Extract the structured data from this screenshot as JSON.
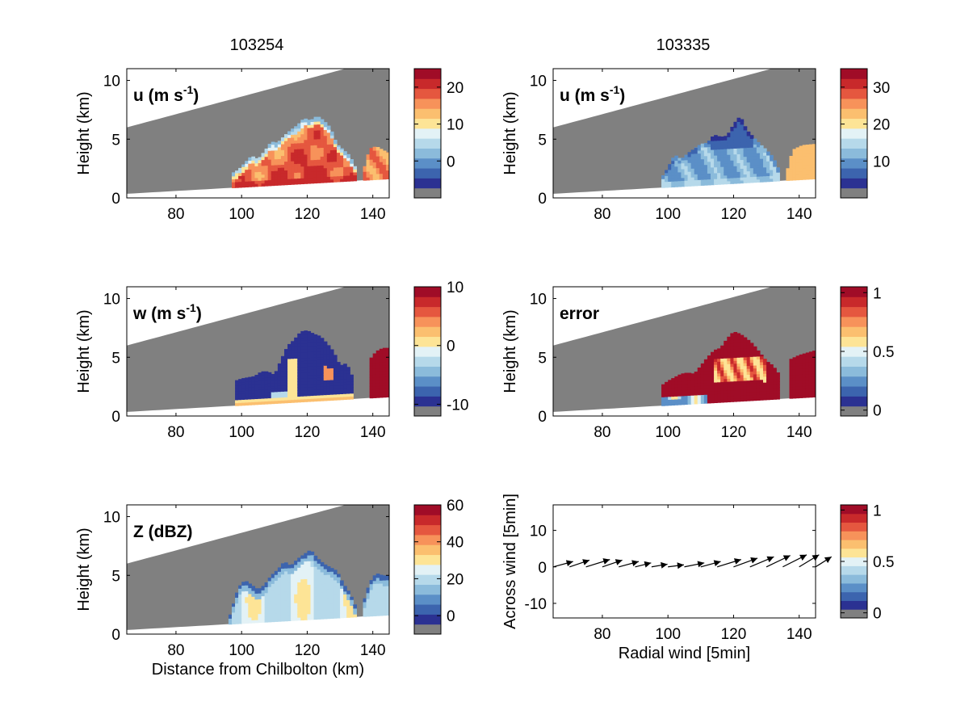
{
  "figure": {
    "column_titles": [
      "103254",
      "103335"
    ],
    "palette": [
      "#2b3192",
      "#3c64ae",
      "#5b8fc7",
      "#8bbbdb",
      "#b6d9ea",
      "#e3f2f6",
      "#fde496",
      "#fbbf6f",
      "#f7925a",
      "#e5573f",
      "#c8292b",
      "#a00c27"
    ],
    "colors": {
      "gray": "#808080",
      "axis": "#000000",
      "background": "#ffffff"
    }
  },
  "chart_data": [
    {
      "type": "heatmap",
      "panel": "u-left",
      "column_title": "103254",
      "label_main": "u (m s",
      "label_sup": "-1",
      "label_end": ")",
      "ylabel": "Height (km)",
      "xlabel": "",
      "xlim": [
        65,
        145
      ],
      "ylim": [
        0,
        11
      ],
      "xticks": [
        "80",
        "100",
        "120",
        "140"
      ],
      "yticks": [
        "0",
        "5",
        "10"
      ],
      "colorbar": {
        "ticks": [
          "0",
          "10",
          "20"
        ],
        "range": [
          -10,
          25
        ]
      },
      "cloud_top_km": [
        [
          97,
          2.1
        ],
        [
          99,
          2.4
        ],
        [
          101,
          3.0
        ],
        [
          103,
          3.6
        ],
        [
          105,
          3.3
        ],
        [
          107,
          4.0
        ],
        [
          109,
          4.8
        ],
        [
          111,
          4.7
        ],
        [
          113,
          5.3
        ],
        [
          115,
          5.8
        ],
        [
          117,
          6.2
        ],
        [
          119,
          6.8
        ],
        [
          121,
          6.6
        ],
        [
          123,
          7.0
        ],
        [
          125,
          6.6
        ],
        [
          127,
          6.0
        ],
        [
          129,
          4.6
        ],
        [
          131,
          4.1
        ],
        [
          133,
          3.6
        ],
        [
          135,
          2.4
        ]
      ],
      "second_cell_top_km": [
        [
          137,
          2.2
        ],
        [
          139,
          4.2
        ],
        [
          141,
          4.4
        ],
        [
          143,
          4.1
        ],
        [
          145,
          3.8
        ]
      ],
      "dominant_values": "mostly 10 to 20 m/s with weaker values near the cloud top"
    },
    {
      "type": "heatmap",
      "panel": "u-right",
      "column_title": "103335",
      "label_main": "u (m s",
      "label_sup": "-1",
      "label_end": ")",
      "ylabel": "Height (km)",
      "xlabel": "",
      "xlim": [
        65,
        145
      ],
      "ylim": [
        0,
        11
      ],
      "xticks": [
        "80",
        "100",
        "120",
        "140"
      ],
      "yticks": [
        "0",
        "5",
        "10"
      ],
      "colorbar": {
        "ticks": [
          "10",
          "20",
          "30"
        ],
        "range": [
          0,
          35
        ]
      },
      "cloud_top_km": [
        [
          98,
          1.7
        ],
        [
          100,
          2.6
        ],
        [
          102,
          3.7
        ],
        [
          104,
          3.3
        ],
        [
          106,
          3.8
        ],
        [
          108,
          4.2
        ],
        [
          110,
          4.6
        ],
        [
          112,
          4.7
        ],
        [
          114,
          5.4
        ],
        [
          116,
          5.2
        ],
        [
          118,
          5.3
        ],
        [
          120,
          6.3
        ],
        [
          122,
          7.0
        ],
        [
          124,
          5.8
        ],
        [
          126,
          5.2
        ],
        [
          128,
          4.6
        ],
        [
          130,
          4.1
        ],
        [
          132,
          3.5
        ],
        [
          134,
          2.3
        ]
      ],
      "second_cell_top_km": [
        [
          136,
          2.0
        ],
        [
          138,
          4.1
        ],
        [
          141,
          4.5
        ],
        [
          145,
          4.6
        ]
      ],
      "dominant_values": "mostly 5 to 12 m/s with a uniform ~22 m/s cell at 140 km"
    },
    {
      "type": "heatmap",
      "panel": "w-left",
      "label_main": "w (m s",
      "label_sup": "-1",
      "label_end": ")",
      "ylabel": "Height (km)",
      "xlabel": "",
      "xlim": [
        65,
        145
      ],
      "ylim": [
        0,
        11
      ],
      "xticks": [
        "80",
        "100",
        "120",
        "140"
      ],
      "yticks": [
        "0",
        "5",
        "10"
      ],
      "colorbar": {
        "ticks": [
          "-10",
          "0",
          "10"
        ],
        "range": [
          -12,
          10
        ]
      },
      "cloud_top_km": [
        [
          98,
          3.0
        ],
        [
          100,
          3.2
        ],
        [
          102,
          3.3
        ],
        [
          104,
          3.4
        ],
        [
          106,
          3.8
        ],
        [
          108,
          3.8
        ],
        [
          110,
          3.5
        ],
        [
          112,
          4.8
        ],
        [
          114,
          6.0
        ],
        [
          116,
          6.5
        ],
        [
          118,
          7.2
        ],
        [
          120,
          7.3
        ],
        [
          122,
          7.0
        ],
        [
          124,
          6.8
        ],
        [
          126,
          6.2
        ],
        [
          128,
          5.5
        ],
        [
          130,
          4.3
        ],
        [
          132,
          4.5
        ],
        [
          134,
          3.2
        ]
      ],
      "second_cell_top_km": [
        [
          139,
          4.8
        ],
        [
          141,
          5.5
        ],
        [
          143,
          5.8
        ],
        [
          145,
          5.8
        ]
      ],
      "dominant_values": "mostly about -10 m/s with a positive layer near the base and a strong positive cell at 140 km"
    },
    {
      "type": "heatmap",
      "panel": "error-right",
      "label_main": "error",
      "label_sup": "",
      "label_end": "",
      "ylabel": "Height (km)",
      "xlabel": "",
      "xlim": [
        65,
        145
      ],
      "ylim": [
        0,
        11
      ],
      "xticks": [
        "80",
        "100",
        "120",
        "140"
      ],
      "yticks": [
        "0",
        "5",
        "10"
      ],
      "colorbar": {
        "ticks": [
          "0",
          "0.5",
          "1"
        ],
        "range": [
          -0.05,
          1.05
        ]
      },
      "cloud_top_km": [
        [
          98,
          2.6
        ],
        [
          100,
          3.0
        ],
        [
          102,
          3.3
        ],
        [
          104,
          3.6
        ],
        [
          106,
          3.7
        ],
        [
          108,
          3.6
        ],
        [
          110,
          4.3
        ],
        [
          112,
          5.0
        ],
        [
          114,
          5.6
        ],
        [
          116,
          5.8
        ],
        [
          118,
          6.6
        ],
        [
          120,
          7.2
        ],
        [
          122,
          7.0
        ],
        [
          124,
          6.6
        ],
        [
          126,
          6.1
        ],
        [
          128,
          5.4
        ],
        [
          130,
          4.7
        ],
        [
          132,
          4.3
        ],
        [
          134,
          3.5
        ]
      ],
      "second_cell_top_km": [
        [
          137,
          4.8
        ],
        [
          140,
          5.2
        ],
        [
          145,
          5.6
        ]
      ],
      "dominant_values": "mostly ~1 with lower values near the cloud base"
    },
    {
      "type": "heatmap",
      "panel": "z-left",
      "label_main": "Z (dBZ)",
      "label_sup": "",
      "label_end": "",
      "ylabel": "Height (km)",
      "xlabel": "Distance from Chilbolton (km)",
      "xlim": [
        65,
        145
      ],
      "ylim": [
        0,
        11
      ],
      "xticks": [
        "80",
        "100",
        "120",
        "140"
      ],
      "yticks": [
        "0",
        "5",
        "10"
      ],
      "colorbar": {
        "ticks": [
          "0",
          "20",
          "40",
          "60"
        ],
        "range": [
          -10,
          60
        ]
      },
      "cloud_top_km": [
        [
          96,
          1.2
        ],
        [
          99,
          4.0
        ],
        [
          101,
          4.6
        ],
        [
          103,
          4.2
        ],
        [
          105,
          3.8
        ],
        [
          107,
          4.2
        ],
        [
          109,
          5.0
        ],
        [
          111,
          5.5
        ],
        [
          113,
          6.2
        ],
        [
          115,
          5.8
        ],
        [
          117,
          6.4
        ],
        [
          119,
          6.8
        ],
        [
          121,
          7.2
        ],
        [
          123,
          6.5
        ],
        [
          125,
          6.0
        ],
        [
          127,
          5.7
        ],
        [
          129,
          5.4
        ],
        [
          131,
          4.3
        ],
        [
          133,
          3.5
        ],
        [
          135,
          2.2
        ]
      ],
      "second_cell_top_km": [
        [
          137,
          2.6
        ],
        [
          139,
          4.4
        ],
        [
          141,
          5.2
        ],
        [
          143,
          5.0
        ],
        [
          145,
          5.0
        ]
      ],
      "dominant_values": "mostly 10 to 30 dBZ with cores up to about 40 dBZ"
    },
    {
      "type": "quiver",
      "panel": "wind-right",
      "ylabel": "Across wind [5min]",
      "xlabel": "Radial wind [5min]",
      "xlim": [
        65,
        145
      ],
      "ylim": [
        -14,
        17
      ],
      "xticks": [
        "80",
        "100",
        "120",
        "140"
      ],
      "yticks": [
        "-10",
        "0",
        "10"
      ],
      "colorbar": {
        "ticks": [
          "0",
          "0.5",
          "1"
        ],
        "range": [
          -0.05,
          1.05
        ]
      },
      "arrows": [
        {
          "x": 65,
          "u": 5,
          "v": 0.8
        },
        {
          "x": 70,
          "u": 5,
          "v": 1.0
        },
        {
          "x": 75,
          "u": 6,
          "v": 1.1
        },
        {
          "x": 80,
          "u": 5,
          "v": 1.0
        },
        {
          "x": 85,
          "u": 5,
          "v": 0.8
        },
        {
          "x": 90,
          "u": 4,
          "v": 0.6
        },
        {
          "x": 95,
          "u": 4,
          "v": 0.4
        },
        {
          "x": 100,
          "u": 4,
          "v": 0.3
        },
        {
          "x": 105,
          "u": 5,
          "v": 0.6
        },
        {
          "x": 110,
          "u": 5,
          "v": 0.8
        },
        {
          "x": 115,
          "u": 6,
          "v": 1.1
        },
        {
          "x": 120,
          "u": 6,
          "v": 1.3
        },
        {
          "x": 125,
          "u": 6,
          "v": 1.5
        },
        {
          "x": 130,
          "u": 6,
          "v": 1.7
        },
        {
          "x": 135,
          "u": 6,
          "v": 1.8
        },
        {
          "x": 140,
          "u": 5,
          "v": 1.8
        },
        {
          "x": 145,
          "u": 4,
          "v": 1.5
        }
      ]
    }
  ]
}
